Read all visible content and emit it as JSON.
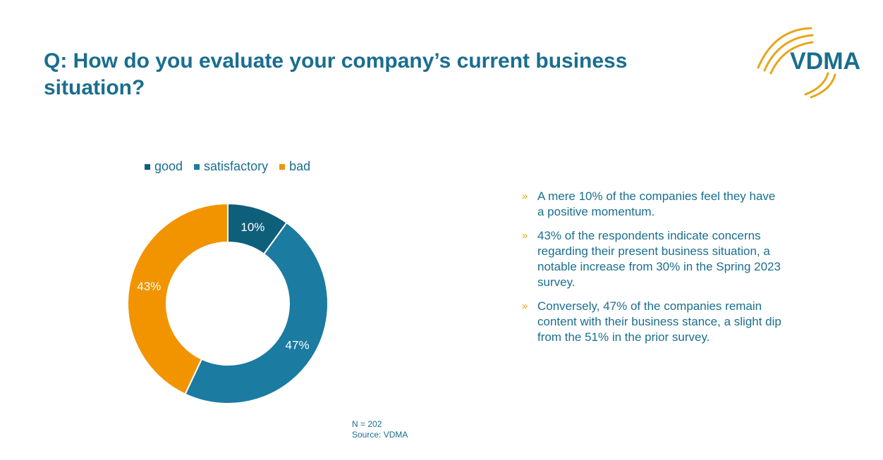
{
  "title": "Q: How do you evaluate your company’s current business situation?",
  "logo": {
    "text": "VDMA",
    "color": "#1a6e8e",
    "accent": "#e6a619"
  },
  "colors": {
    "title": "#1a6e8e",
    "text": "#1a6e8e",
    "bullet_marker": "#f0a500",
    "footnote": "#1a6e8e"
  },
  "chart_data": {
    "type": "pie",
    "variant": "donut",
    "title": "",
    "legend_position": "top",
    "slices": [
      {
        "label": "good",
        "value": 10,
        "display": "10%",
        "color": "#0e5f7a"
      },
      {
        "label": "satisfactory",
        "value": 47,
        "display": "47%",
        "color": "#1b7ba1"
      },
      {
        "label": "bad",
        "value": 43,
        "display": "43%",
        "color": "#f29400"
      }
    ]
  },
  "bullets": [
    "A mere 10% of the companies feel they have a positive momentum.",
    "43% of the respondents indicate concerns regarding their present business situation, a notable increase from 30% in the Spring 2023 survey.",
    "Conversely, 47% of the companies remain content with their business stance, a slight dip from the 51% in the prior survey."
  ],
  "bullet_marker": "»",
  "footnote": {
    "n": "N = 202",
    "source": "Source: VDMA"
  }
}
